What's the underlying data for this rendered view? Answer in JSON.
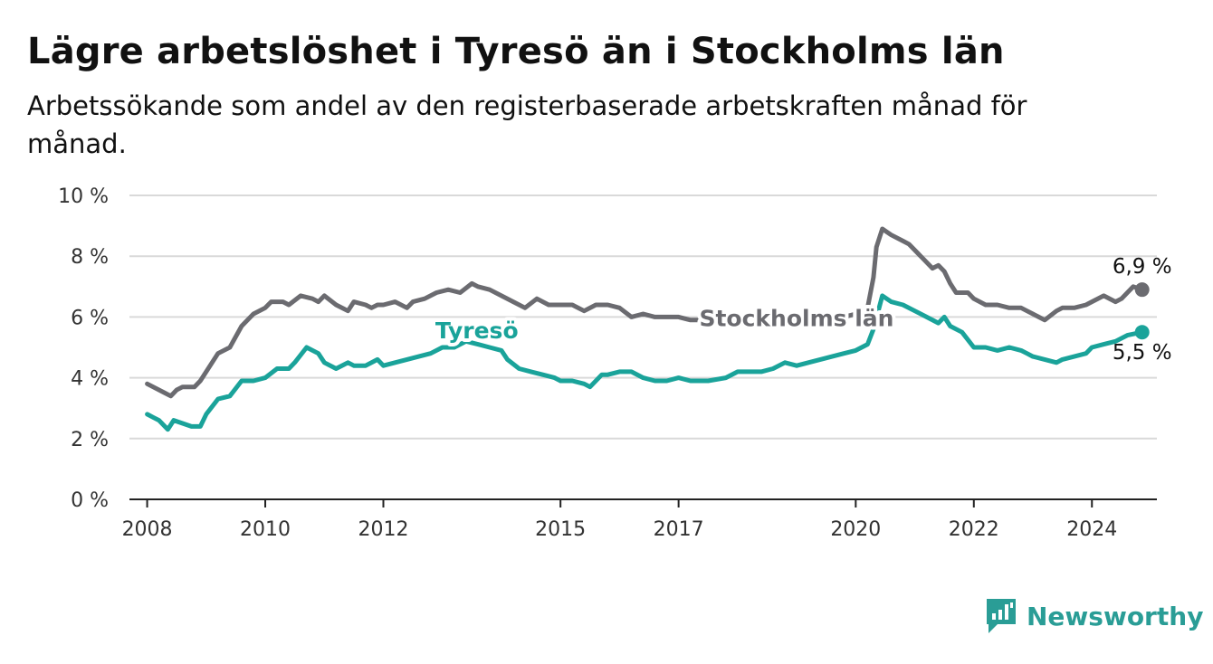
{
  "title": "Lägre arbetslöshet i Tyresö än i Stockholms län",
  "subtitle": "Arbetssökande som andel av den registerbaserade arbetskraften månad för månad.",
  "brand": "Newsworthy",
  "colors": {
    "tyreso": "#1aa39a",
    "stockholm": "#6b6b70",
    "grid": "#d9d9d9",
    "axis": "#222222"
  },
  "chart_data": {
    "type": "line",
    "ylim": [
      0,
      10
    ],
    "xlim": [
      2007.7,
      2025.1
    ],
    "yticks": [
      {
        "value": 0,
        "label": "0 %"
      },
      {
        "value": 2,
        "label": "2 %"
      },
      {
        "value": 4,
        "label": "4 %"
      },
      {
        "value": 6,
        "label": "6 %"
      },
      {
        "value": 8,
        "label": "8 %"
      },
      {
        "value": 10,
        "label": "10 %"
      }
    ],
    "xticks": [
      {
        "value": 2008,
        "label": "2008"
      },
      {
        "value": 2010,
        "label": "2010"
      },
      {
        "value": 2012,
        "label": "2012"
      },
      {
        "value": 2015,
        "label": "2015"
      },
      {
        "value": 2017,
        "label": "2017"
      },
      {
        "value": 2020,
        "label": "2020"
      },
      {
        "value": 2022,
        "label": "2022"
      },
      {
        "value": 2024,
        "label": "2024"
      }
    ],
    "series": [
      {
        "name": "Stockholms län",
        "end_label": "6,9 %",
        "x": [
          2008.0,
          2008.3,
          2008.4,
          2008.5,
          2008.6,
          2008.8,
          2008.9,
          2009.2,
          2009.4,
          2009.6,
          2009.8,
          2010.0,
          2010.1,
          2010.3,
          2010.4,
          2010.6,
          2010.8,
          2010.9,
          2011.0,
          2011.2,
          2011.4,
          2011.5,
          2011.7,
          2011.8,
          2011.9,
          2012.0,
          2012.2,
          2012.4,
          2012.5,
          2012.7,
          2012.9,
          2013.1,
          2013.3,
          2013.5,
          2013.6,
          2013.8,
          2014.0,
          2014.2,
          2014.4,
          2014.6,
          2014.8,
          2015.0,
          2015.2,
          2015.4,
          2015.6,
          2015.8,
          2016.0,
          2016.2,
          2016.4,
          2016.6,
          2016.8,
          2017.0,
          2017.2,
          2017.5,
          2017.8,
          2018.0,
          2018.3,
          2018.6,
          2018.9,
          2019.2,
          2019.5,
          2019.8,
          2020.0,
          2020.1,
          2020.2,
          2020.3,
          2020.35,
          2020.45,
          2020.6,
          2020.8,
          2020.9,
          2021.1,
          2021.3,
          2021.4,
          2021.5,
          2021.6,
          2021.7,
          2021.9,
          2022.0,
          2022.2,
          2022.4,
          2022.6,
          2022.8,
          2022.9,
          2023.0,
          2023.1,
          2023.2,
          2023.4,
          2023.5,
          2023.7,
          2023.9,
          2024.0,
          2024.2,
          2024.4,
          2024.5,
          2024.7,
          2024.85
        ],
        "y": [
          3.8,
          3.5,
          3.4,
          3.6,
          3.7,
          3.7,
          3.9,
          4.8,
          5.0,
          5.7,
          6.1,
          6.3,
          6.5,
          6.5,
          6.4,
          6.7,
          6.6,
          6.5,
          6.7,
          6.4,
          6.2,
          6.5,
          6.4,
          6.3,
          6.4,
          6.4,
          6.5,
          6.3,
          6.5,
          6.6,
          6.8,
          6.9,
          6.8,
          7.1,
          7.0,
          6.9,
          6.7,
          6.5,
          6.3,
          6.6,
          6.4,
          6.4,
          6.4,
          6.2,
          6.4,
          6.4,
          6.3,
          6.0,
          6.1,
          6.0,
          6.0,
          6.0,
          5.9,
          5.9,
          5.9,
          5.9,
          5.9,
          5.8,
          5.9,
          6.0,
          6.0,
          6.0,
          6.1,
          6.0,
          6.3,
          7.3,
          8.3,
          8.9,
          8.7,
          8.5,
          8.4,
          8.0,
          7.6,
          7.7,
          7.5,
          7.1,
          6.8,
          6.8,
          6.6,
          6.4,
          6.4,
          6.3,
          6.3,
          6.2,
          6.1,
          6.0,
          5.9,
          6.2,
          6.3,
          6.3,
          6.4,
          6.5,
          6.7,
          6.5,
          6.6,
          7.0,
          6.9
        ]
      },
      {
        "name": "Tyresö",
        "end_label": "5,5 %",
        "x": [
          2008.0,
          2008.1,
          2008.2,
          2008.35,
          2008.45,
          2008.6,
          2008.75,
          2008.9,
          2009.0,
          2009.2,
          2009.4,
          2009.6,
          2009.8,
          2010.0,
          2010.2,
          2010.4,
          2010.5,
          2010.7,
          2010.9,
          2011.0,
          2011.2,
          2011.4,
          2011.5,
          2011.7,
          2011.9,
          2012.0,
          2012.2,
          2012.4,
          2012.6,
          2012.8,
          2013.0,
          2013.2,
          2013.4,
          2013.6,
          2013.8,
          2014.0,
          2014.1,
          2014.3,
          2014.5,
          2014.7,
          2014.9,
          2015.0,
          2015.2,
          2015.4,
          2015.5,
          2015.7,
          2015.8,
          2016.0,
          2016.2,
          2016.4,
          2016.6,
          2016.8,
          2017.0,
          2017.2,
          2017.5,
          2017.8,
          2018.0,
          2018.2,
          2018.4,
          2018.6,
          2018.8,
          2019.0,
          2019.2,
          2019.4,
          2019.6,
          2019.8,
          2020.0,
          2020.2,
          2020.3,
          2020.45,
          2020.6,
          2020.8,
          2021.0,
          2021.2,
          2021.4,
          2021.5,
          2021.6,
          2021.8,
          2022.0,
          2022.2,
          2022.4,
          2022.6,
          2022.8,
          2022.9,
          2023.0,
          2023.2,
          2023.4,
          2023.5,
          2023.7,
          2023.9,
          2024.0,
          2024.2,
          2024.4,
          2024.6,
          2024.85
        ],
        "y": [
          2.8,
          2.7,
          2.6,
          2.3,
          2.6,
          2.5,
          2.4,
          2.4,
          2.8,
          3.3,
          3.4,
          3.9,
          3.9,
          4.0,
          4.3,
          4.3,
          4.5,
          5.0,
          4.8,
          4.5,
          4.3,
          4.5,
          4.4,
          4.4,
          4.6,
          4.4,
          4.5,
          4.6,
          4.7,
          4.8,
          5.0,
          5.0,
          5.2,
          5.1,
          5.0,
          4.9,
          4.6,
          4.3,
          4.2,
          4.1,
          4.0,
          3.9,
          3.9,
          3.8,
          3.7,
          4.1,
          4.1,
          4.2,
          4.2,
          4.0,
          3.9,
          3.9,
          4.0,
          3.9,
          3.9,
          4.0,
          4.2,
          4.2,
          4.2,
          4.3,
          4.5,
          4.4,
          4.5,
          4.6,
          4.7,
          4.8,
          4.9,
          5.1,
          5.6,
          6.7,
          6.5,
          6.4,
          6.2,
          6.0,
          5.8,
          6.0,
          5.7,
          5.5,
          5.0,
          5.0,
          4.9,
          5.0,
          4.9,
          4.8,
          4.7,
          4.6,
          4.5,
          4.6,
          4.7,
          4.8,
          5.0,
          5.1,
          5.2,
          5.4,
          5.5
        ]
      }
    ]
  }
}
